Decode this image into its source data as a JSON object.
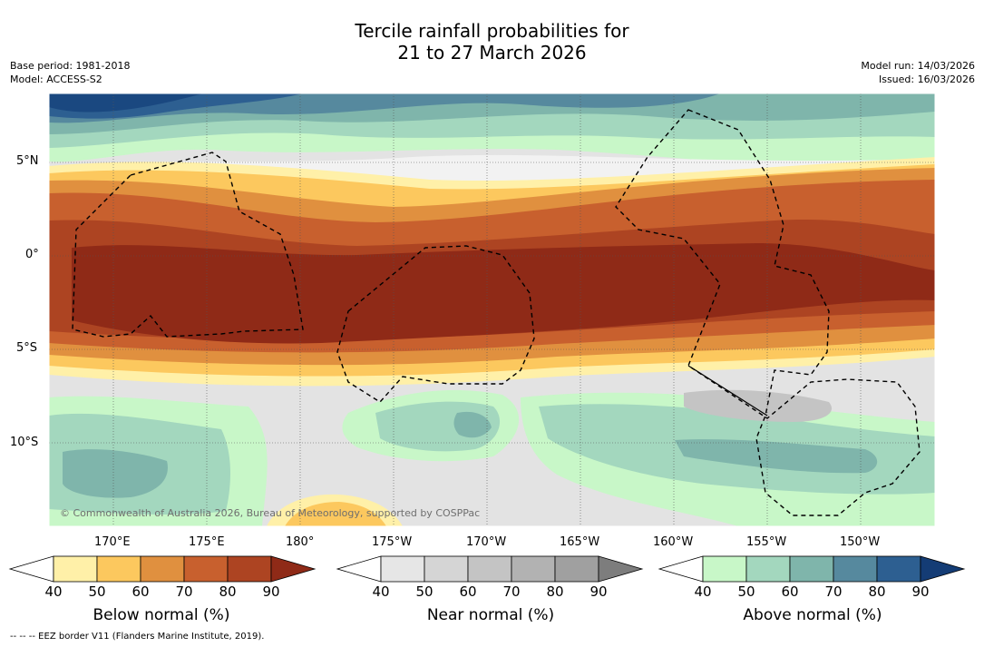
{
  "title_line1": "Tercile rainfall probabilities for",
  "title_line2": "21 to 27 March 2026",
  "base_period": "Base period: 1981-2018",
  "model": "Model: ACCESS-S2",
  "model_run": "Model run: 14/03/2026",
  "issued": "Issued: 16/03/2026",
  "copyright": "© Commonwealth of Australia 2026, Bureau of Meteorology, supported by COSPPac",
  "lat_labels": [
    "5°N",
    "0°",
    "5°S",
    "10°S"
  ],
  "lon_labels": [
    "170°E",
    "175°E",
    "180°",
    "175°W",
    "170°W",
    "165°W",
    "160°W",
    "155°W",
    "150°W"
  ],
  "colorbars": [
    {
      "label": "Below normal (%)",
      "ticks": [
        "40",
        "50",
        "60",
        "70",
        "80",
        "90"
      ],
      "colors": [
        "#ffffff",
        "#fff0a8",
        "#fcc85e",
        "#e0903f",
        "#c8602e",
        "#ad4422",
        "#8f2a17"
      ]
    },
    {
      "label": "Near normal (%)",
      "ticks": [
        "40",
        "50",
        "60",
        "70",
        "80",
        "90"
      ],
      "colors": [
        "#ffffff",
        "#e6e6e6",
        "#d5d5d5",
        "#c4c4c4",
        "#b2b2b2",
        "#a0a0a0",
        "#7d7d7d"
      ]
    },
    {
      "label": "Above normal (%)",
      "ticks": [
        "40",
        "50",
        "60",
        "70",
        "80",
        "90"
      ],
      "colors": [
        "#ffffff",
        "#c8f7c8",
        "#a3d7be",
        "#7fb5ab",
        "#56899e",
        "#2d5f91",
        "#143c75"
      ]
    }
  ],
  "footnote": "-- -- -- EEZ border V11 (Flanders Marine Institute, 2019)."
}
